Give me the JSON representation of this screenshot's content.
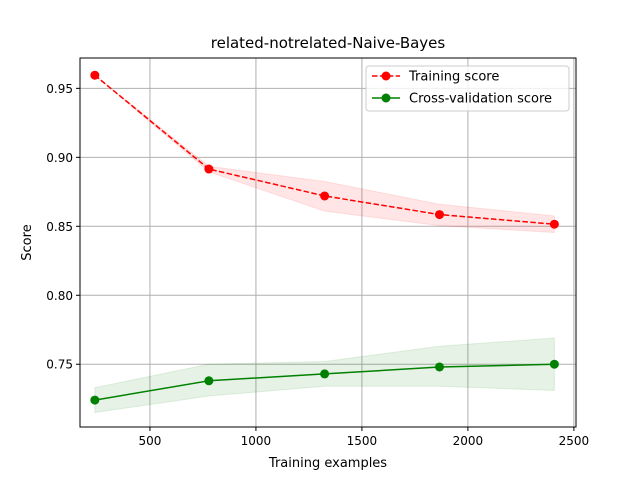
{
  "chart_data": {
    "type": "line",
    "title": "related-notrelated-Naive-Bayes",
    "xlabel": "Training examples",
    "ylabel": "Score",
    "xlim": [
      170,
      2510
    ],
    "ylim": [
      0.7045,
      0.972
    ],
    "x_ticks": [
      500,
      1000,
      1500,
      2000,
      2500
    ],
    "x_tick_labels": [
      "500",
      "1000",
      "1500",
      "2000",
      "2500"
    ],
    "y_ticks": [
      0.75,
      0.8,
      0.85,
      0.9,
      0.95
    ],
    "y_tick_labels": [
      "0.75",
      "0.80",
      "0.85",
      "0.90",
      "0.95"
    ],
    "grid": true,
    "legend_position": "upper-right",
    "x": [
      240,
      778,
      1324,
      1866,
      2408
    ],
    "series": [
      {
        "name": "Training score",
        "color": "#ff0000",
        "line_style": "dashed",
        "marker": "circle",
        "values": [
          0.9595,
          0.8915,
          0.872,
          0.8585,
          0.8515
        ],
        "band_upper": [
          0.9595,
          0.8935,
          0.8825,
          0.866,
          0.8575
        ],
        "band_lower": [
          0.9595,
          0.8895,
          0.861,
          0.8505,
          0.8455
        ]
      },
      {
        "name": "Cross-validation score",
        "color": "#008000",
        "line_style": "solid",
        "marker": "circle",
        "values": [
          0.724,
          0.738,
          0.743,
          0.748,
          0.75
        ],
        "band_upper": [
          0.733,
          0.75,
          0.752,
          0.763,
          0.769
        ],
        "band_lower": [
          0.715,
          0.727,
          0.734,
          0.734,
          0.731
        ]
      }
    ]
  }
}
